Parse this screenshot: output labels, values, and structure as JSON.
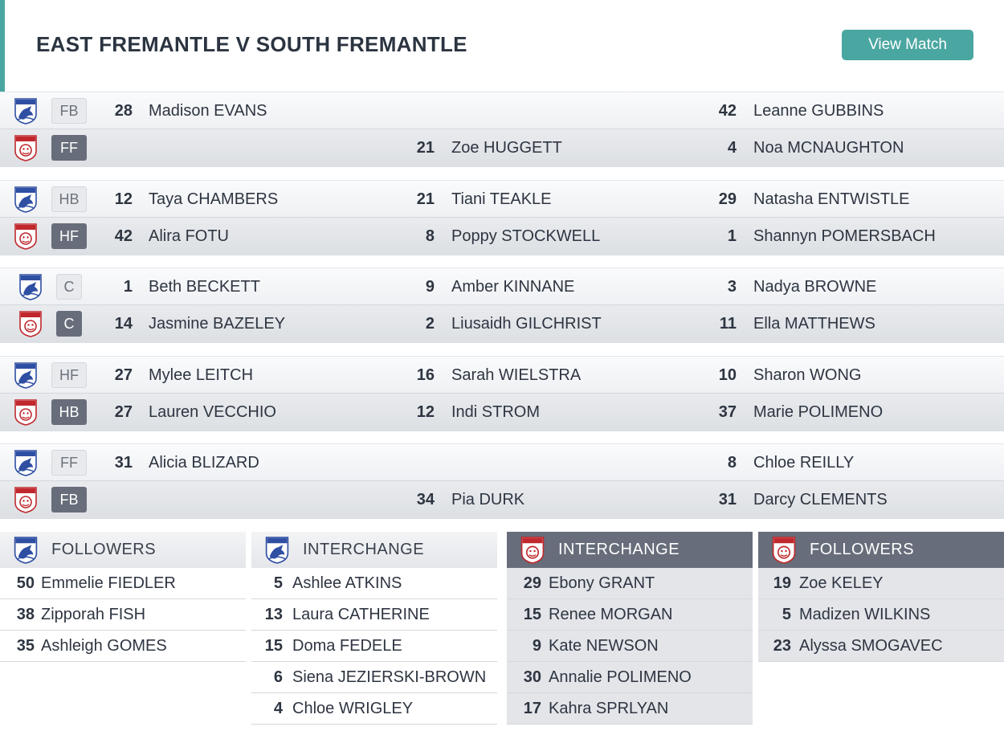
{
  "header": {
    "title": "EAST FREMANTLE V SOUTH FREMANTLE",
    "view_match_label": "View Match",
    "accent_color": "#4aa6a0"
  },
  "teams": {
    "home": {
      "logo_text": "SHARKS",
      "logo_color": "#2f4fa3"
    },
    "away": {
      "logo_text": "BULLDOGS",
      "logo_color": "#c0282d"
    }
  },
  "lines": [
    {
      "home": {
        "pos": "FB",
        "players": [
          {
            "num": "28",
            "name": "Madison EVANS"
          },
          {
            "num": "",
            "name": ""
          },
          {
            "num": "42",
            "name": "Leanne GUBBINS"
          }
        ]
      },
      "away": {
        "pos": "FF",
        "players": [
          {
            "num": "",
            "name": ""
          },
          {
            "num": "21",
            "name": "Zoe HUGGETT"
          },
          {
            "num": "4",
            "name": "Noa MCNAUGHTON"
          }
        ]
      }
    },
    {
      "home": {
        "pos": "HB",
        "players": [
          {
            "num": "12",
            "name": "Taya CHAMBERS"
          },
          {
            "num": "21",
            "name": "Tiani TEAKLE"
          },
          {
            "num": "29",
            "name": "Natasha ENTWISTLE"
          }
        ]
      },
      "away": {
        "pos": "HF",
        "players": [
          {
            "num": "42",
            "name": "Alira FOTU"
          },
          {
            "num": "8",
            "name": "Poppy STOCKWELL"
          },
          {
            "num": "1",
            "name": "Shannyn POMERSBACH"
          }
        ]
      }
    },
    {
      "home": {
        "pos": "C",
        "players": [
          {
            "num": "1",
            "name": "Beth BECKETT"
          },
          {
            "num": "9",
            "name": "Amber KINNANE"
          },
          {
            "num": "3",
            "name": "Nadya BROWNE"
          }
        ]
      },
      "away": {
        "pos": "C",
        "players": [
          {
            "num": "14",
            "name": "Jasmine BAZELEY"
          },
          {
            "num": "2",
            "name": "Liusaidh GILCHRIST"
          },
          {
            "num": "11",
            "name": "Ella MATTHEWS"
          }
        ]
      }
    },
    {
      "home": {
        "pos": "HF",
        "players": [
          {
            "num": "27",
            "name": "Mylee LEITCH"
          },
          {
            "num": "16",
            "name": "Sarah WIELSTRA"
          },
          {
            "num": "10",
            "name": "Sharon WONG"
          }
        ]
      },
      "away": {
        "pos": "HB",
        "players": [
          {
            "num": "27",
            "name": "Lauren VECCHIO"
          },
          {
            "num": "12",
            "name": "Indi STROM"
          },
          {
            "num": "37",
            "name": "Marie POLIMENO"
          }
        ]
      }
    },
    {
      "home": {
        "pos": "FF",
        "players": [
          {
            "num": "31",
            "name": "Alicia BLIZARD"
          },
          {
            "num": "",
            "name": ""
          },
          {
            "num": "8",
            "name": "Chloe REILLY"
          }
        ]
      },
      "away": {
        "pos": "FB",
        "players": [
          {
            "num": "",
            "name": ""
          },
          {
            "num": "34",
            "name": "Pia DURK"
          },
          {
            "num": "31",
            "name": "Darcy CLEMENTS"
          }
        ]
      }
    }
  ],
  "panels": [
    {
      "team": "home",
      "title": "FOLLOWERS",
      "players": [
        {
          "num": "50",
          "name": "Emmelie FIEDLER"
        },
        {
          "num": "38",
          "name": "Zipporah FISH"
        },
        {
          "num": "35",
          "name": "Ashleigh GOMES"
        }
      ]
    },
    {
      "team": "home",
      "title": "INTERCHANGE",
      "players": [
        {
          "num": "5",
          "name": "Ashlee ATKINS"
        },
        {
          "num": "13",
          "name": "Laura CATHERINE"
        },
        {
          "num": "15",
          "name": "Doma FEDELE"
        },
        {
          "num": "6",
          "name": "Siena JEZIERSKI-BROWN"
        },
        {
          "num": "4",
          "name": "Chloe WRIGLEY"
        }
      ]
    },
    {
      "team": "away",
      "title": "INTERCHANGE",
      "players": [
        {
          "num": "29",
          "name": "Ebony GRANT"
        },
        {
          "num": "15",
          "name": "Renee MORGAN"
        },
        {
          "num": "9",
          "name": "Kate NEWSON"
        },
        {
          "num": "30",
          "name": "Annalie POLIMENO"
        },
        {
          "num": "17",
          "name": "Kahra SPRLYAN"
        }
      ]
    },
    {
      "team": "away",
      "title": "FOLLOWERS",
      "players": [
        {
          "num": "19",
          "name": "Zoe KELEY"
        },
        {
          "num": "5",
          "name": "Madizen WILKINS"
        },
        {
          "num": "23",
          "name": "Alyssa SMOGAVEC"
        }
      ]
    }
  ]
}
